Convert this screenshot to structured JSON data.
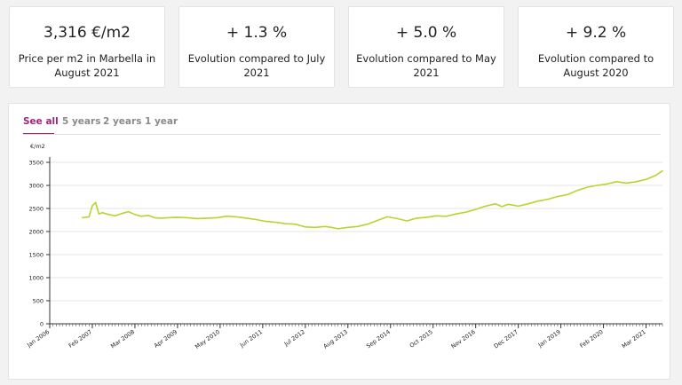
{
  "stats": [
    {
      "value": "3,316 €/m2",
      "label": "Price per m2 in Marbella in August 2021"
    },
    {
      "value": "+ 1.3 %",
      "label": "Evolution compared to July 2021"
    },
    {
      "value": "+ 5.0 %",
      "label": "Evolution compared to May 2021"
    },
    {
      "value": "+ 9.2 %",
      "label": "Evolution compared to August 2020"
    }
  ],
  "tabs": [
    "See all",
    "5 years",
    "2 years",
    "1 year"
  ],
  "active_tab": "See all",
  "colors": {
    "accent": "#a0257d",
    "line": "#b5d62c",
    "grid": "#e6e6e6"
  },
  "chart_data": {
    "type": "line",
    "ylabel": "€/m2",
    "ylim": [
      0,
      3500
    ],
    "yticks": [
      0,
      500,
      1000,
      1500,
      2000,
      2500,
      3000,
      3500
    ],
    "xlim": [
      "2006-01",
      "2021-08"
    ],
    "xticks": [
      {
        "date": "2006-01",
        "label": "Jan 2006"
      },
      {
        "date": "2007-02",
        "label": "Feb 2007"
      },
      {
        "date": "2008-03",
        "label": "Mar 2008"
      },
      {
        "date": "2009-04",
        "label": "Apr 2009"
      },
      {
        "date": "2010-05",
        "label": "May 2010"
      },
      {
        "date": "2011-06",
        "label": "Jun 2011"
      },
      {
        "date": "2012-07",
        "label": "Jul 2012"
      },
      {
        "date": "2013-08",
        "label": "Aug 2013"
      },
      {
        "date": "2014-09",
        "label": "Sep 2014"
      },
      {
        "date": "2015-10",
        "label": "Oct 2015"
      },
      {
        "date": "2016-11",
        "label": "Nov 2016"
      },
      {
        "date": "2017-12",
        "label": "Dec 2017"
      },
      {
        "date": "2019-01",
        "label": "Jan 2019"
      },
      {
        "date": "2020-02",
        "label": "Feb 2020"
      },
      {
        "date": "2021-03",
        "label": "Mar 2021"
      }
    ],
    "grid": true,
    "series": [
      {
        "x": [
          "2006-11",
          "2007-01",
          "2007-02",
          "2007-03",
          "2007-04",
          "2007-05",
          "2007-07",
          "2007-09",
          "2007-11",
          "2008-01",
          "2008-03",
          "2008-05",
          "2008-07",
          "2008-09",
          "2008-11",
          "2009-01",
          "2009-04",
          "2009-07",
          "2009-10",
          "2010-01",
          "2010-04",
          "2010-07",
          "2010-10",
          "2011-01",
          "2011-04",
          "2011-07",
          "2011-10",
          "2012-01",
          "2012-04",
          "2012-07",
          "2012-10",
          "2013-01",
          "2013-03",
          "2013-05",
          "2013-08",
          "2013-11",
          "2014-02",
          "2014-05",
          "2014-08",
          "2014-11",
          "2015-02",
          "2015-05",
          "2015-08",
          "2015-11",
          "2016-02",
          "2016-05",
          "2016-08",
          "2016-11",
          "2017-02",
          "2017-05",
          "2017-07",
          "2017-09",
          "2017-12",
          "2018-03",
          "2018-06",
          "2018-09",
          "2018-12",
          "2019-03",
          "2019-06",
          "2019-09",
          "2019-12",
          "2020-03",
          "2020-06",
          "2020-09",
          "2020-12",
          "2021-03",
          "2021-06",
          "2021-08"
        ],
        "y": [
          2300,
          2320,
          2560,
          2630,
          2380,
          2410,
          2370,
          2340,
          2390,
          2430,
          2370,
          2330,
          2350,
          2300,
          2290,
          2300,
          2310,
          2300,
          2280,
          2290,
          2300,
          2330,
          2320,
          2290,
          2260,
          2220,
          2200,
          2170,
          2160,
          2100,
          2090,
          2110,
          2090,
          2060,
          2090,
          2110,
          2160,
          2240,
          2320,
          2280,
          2230,
          2290,
          2310,
          2340,
          2330,
          2380,
          2420,
          2480,
          2550,
          2600,
          2540,
          2590,
          2550,
          2600,
          2660,
          2700,
          2760,
          2800,
          2890,
          2960,
          3000,
          3030,
          3080,
          3050,
          3080,
          3130,
          3220,
          3316
        ]
      }
    ]
  }
}
